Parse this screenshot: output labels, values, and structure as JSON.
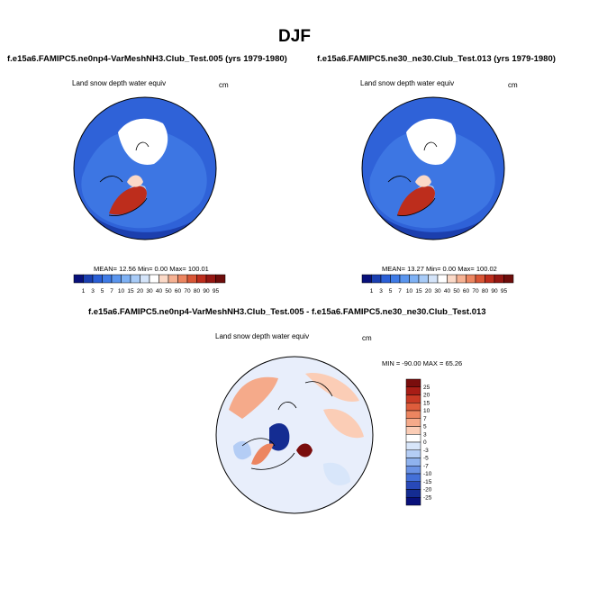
{
  "title": "DJF",
  "panels": [
    {
      "name": "test",
      "title": "f.e15a6.FAMIPC5.ne0np4-VarMeshNH3.Club_Test.005 (yrs 1979-1980)",
      "field_label": "Land snow depth water equiv",
      "units": "cm",
      "stats": "MEAN= 12.56 Min= 0.00 Max= 100.01"
    },
    {
      "name": "control",
      "title": "f.e15a6.FAMIPC5.ne30_ne30.Club_Test.013 (yrs 1979-1980)",
      "field_label": "Land snow depth water equiv",
      "units": "cm",
      "stats": "MEAN= 13.27 Min= 0.00 Max= 100.02"
    }
  ],
  "diff_panel": {
    "title": "f.e15a6.FAMIPC5.ne0np4-VarMeshNH3.Club_Test.005 - f.e15a6.FAMIPC5.ne30_ne30.Club_Test.013",
    "field_label": "Land snow depth water equiv",
    "units": "cm",
    "stats": "MIN = -90.00 MAX = 65.26"
  },
  "colorbar_abs": {
    "labels": [
      "1",
      "3",
      "5",
      "7",
      "10",
      "15",
      "20",
      "30",
      "40",
      "50",
      "60",
      "70",
      "80",
      "90",
      "95"
    ],
    "colors": [
      "#08107a",
      "#1a3fb0",
      "#2a5fd6",
      "#3f7be6",
      "#5a95ee",
      "#7eb1f4",
      "#a8cbf7",
      "#d4e4f9",
      "#ffffff",
      "#fbd9c7",
      "#f6b192",
      "#ec8560",
      "#d95535",
      "#bd2d1c",
      "#951712",
      "#6e0d0b"
    ]
  },
  "colorbar_diff": {
    "labels": [
      "25",
      "20",
      "15",
      "10",
      "7",
      "5",
      "3",
      "0",
      "-3",
      "-5",
      "-7",
      "-10",
      "-15",
      "-20",
      "-25"
    ],
    "colors": [
      "#7a0d0d",
      "#a81d16",
      "#c83a25",
      "#de5d3c",
      "#ec8560",
      "#f5aa8a",
      "#fbcdb6",
      "#ffffff",
      "#d8e6fa",
      "#b4cdf5",
      "#8fb2ee",
      "#6a92e4",
      "#4470d8",
      "#2849b8",
      "#142c92",
      "#08107a"
    ]
  }
}
